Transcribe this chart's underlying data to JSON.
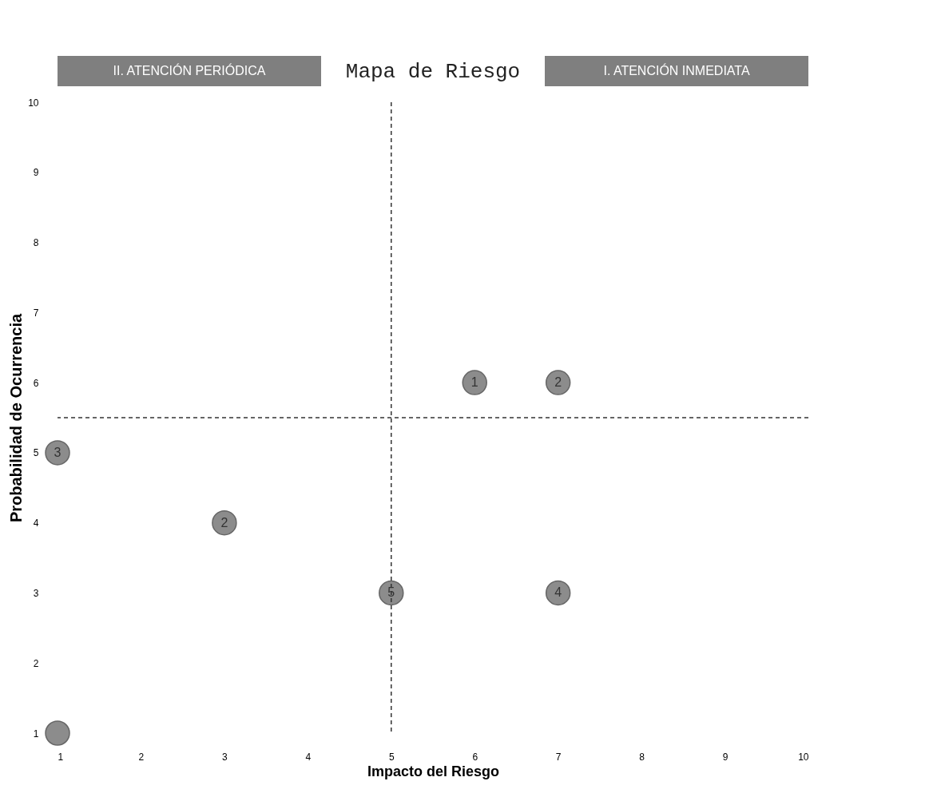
{
  "chart_data": {
    "type": "scatter",
    "title": "Mapa de Riesgo",
    "xlabel": "Impacto del Riesgo",
    "ylabel": "Probabilidad de Ocurrencia",
    "x": [
      1,
      5,
      7,
      3,
      1,
      6,
      7
    ],
    "series": [
      {
        "color": "#8c8c8c",
        "values": [
          1,
          3,
          3,
          4,
          5,
          6,
          6
        ]
      }
    ],
    "xlim": [
      1,
      10
    ],
    "ylim": [
      1,
      10
    ],
    "xticks": [
      1,
      2,
      3,
      4,
      5,
      6,
      7,
      8,
      9,
      10
    ],
    "yticks": [
      1,
      2,
      3,
      4,
      5,
      6,
      7,
      8,
      9,
      10
    ],
    "grid": false,
    "marker": "circle",
    "ref_lines": [
      {
        "axis": "x",
        "value": 5,
        "line_style": "dashed",
        "color": "#333333"
      },
      {
        "axis": "y",
        "value": 5.5,
        "line_style": "dashed",
        "color": "#333333"
      }
    ],
    "annotations": [
      "II. ATENCIÓN PERIÓDICA",
      "I. ATENCIÓN INMEDIATA",
      {
        "text": "5",
        "x": 5,
        "y": 3
      },
      {
        "text": "4",
        "x": 7,
        "y": 3
      },
      {
        "text": "2",
        "x": 3,
        "y": 4
      },
      {
        "text": "3",
        "x": 1,
        "y": 5
      },
      {
        "text": "1",
        "x": 6,
        "y": 6
      },
      {
        "text": "2",
        "x": 7,
        "y": 6
      }
    ]
  }
}
